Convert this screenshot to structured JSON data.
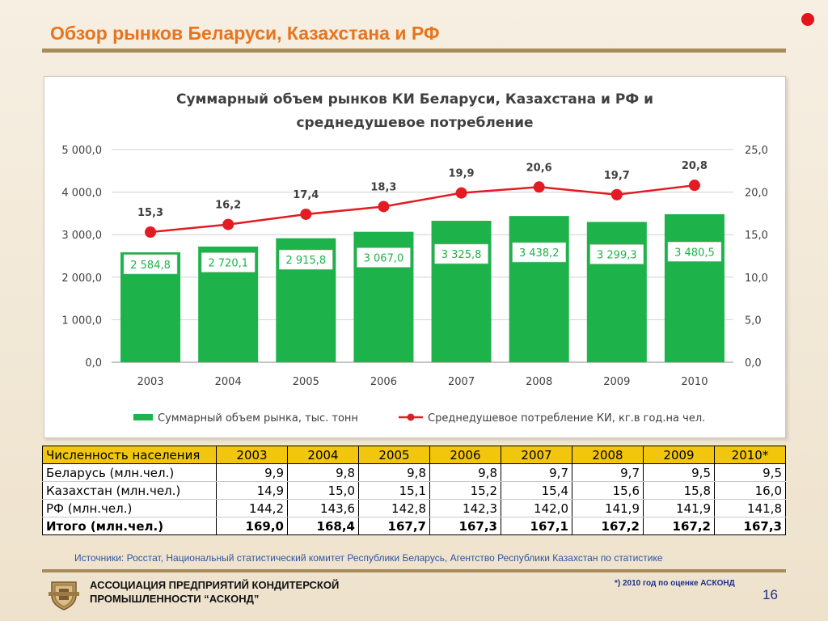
{
  "slide": {
    "title": "Обзор рынков Беларуси, Казахстана и РФ",
    "sources": "Источники: Росстат, Национальный статистический комитет Республики Беларусь, Агентство Республики Казахстан по статистике",
    "org_line1": "АССОЦИАЦИЯ ПРЕДПРИЯТИЙ  КОНДИТЕРСКОЙ",
    "org_line2": "ПРОМЫШЛЕННОСТИ “АСКОНД”",
    "note": "*) 2010 год  по оценке АСКОНД",
    "page_number": "16",
    "colors": {
      "title": "#e8741c",
      "accent_dot": "#e3141b",
      "rule": "#a98a5a",
      "table_header": "#f2c60c",
      "link_text": "#2f55a4"
    }
  },
  "chart_data": {
    "type": "bar",
    "title_line1": "Суммарный объем рынков КИ Беларуси, Казахстана и РФ и",
    "title_line2": "среднедушевое потребление",
    "categories": [
      "2003",
      "2004",
      "2005",
      "2006",
      "2007",
      "2008",
      "2009",
      "2010"
    ],
    "series": [
      {
        "name": "Суммарный объем рынка, тыс. тонн",
        "type": "bar",
        "axis": "left",
        "color": "#1db34a",
        "values": [
          2584.8,
          2720.1,
          2915.8,
          3067.0,
          3325.8,
          3438.2,
          3299.3,
          3480.5
        ],
        "labels": [
          "2 584,8",
          "2 720,1",
          "2 915,8",
          "3 067,0",
          "3 325,8",
          "3 438,2",
          "3 299,3",
          "3 480,5"
        ]
      },
      {
        "name": "Среднедушевое потребление КИ, кг.в год.на чел.",
        "type": "line",
        "axis": "right",
        "color": "#e31b23",
        "values": [
          15.3,
          16.2,
          17.4,
          18.3,
          19.9,
          20.6,
          19.7,
          20.8
        ],
        "labels": [
          "15,3",
          "16,2",
          "17,4",
          "18,3",
          "19,9",
          "20,6",
          "19,7",
          "20,8"
        ]
      }
    ],
    "left_axis": {
      "ylim": [
        0,
        5000
      ],
      "ticks": [
        "0,0",
        "1 000,0",
        "2 000,0",
        "3 000,0",
        "4 000,0",
        "5 000,0"
      ]
    },
    "right_axis": {
      "ylim": [
        0,
        25
      ],
      "ticks": [
        "0,0",
        "5,0",
        "10,0",
        "15,0",
        "20,0",
        "25,0"
      ]
    },
    "grid": true,
    "legend_position": "bottom"
  },
  "table": {
    "headers": [
      "Численность населения",
      "2003",
      "2004",
      "2005",
      "2006",
      "2007",
      "2008",
      "2009",
      "2010*"
    ],
    "rows": [
      [
        "Беларусь (млн.чел.)",
        "9,9",
        "9,8",
        "9,8",
        "9,8",
        "9,7",
        "9,7",
        "9,5",
        "9,5"
      ],
      [
        "Казахстан (млн.чел.)",
        "14,9",
        "15,0",
        "15,1",
        "15,2",
        "15,4",
        "15,6",
        "15,8",
        "16,0"
      ],
      [
        "РФ (млн.чел.)",
        "144,2",
        "143,6",
        "142,8",
        "142,3",
        "142,0",
        "141,9",
        "141,9",
        "141,8"
      ]
    ],
    "total": [
      "Итого (млн.чел.)",
      "169,0",
      "168,4",
      "167,7",
      "167,3",
      "167,1",
      "167,2",
      "167,2",
      "167,3"
    ]
  }
}
